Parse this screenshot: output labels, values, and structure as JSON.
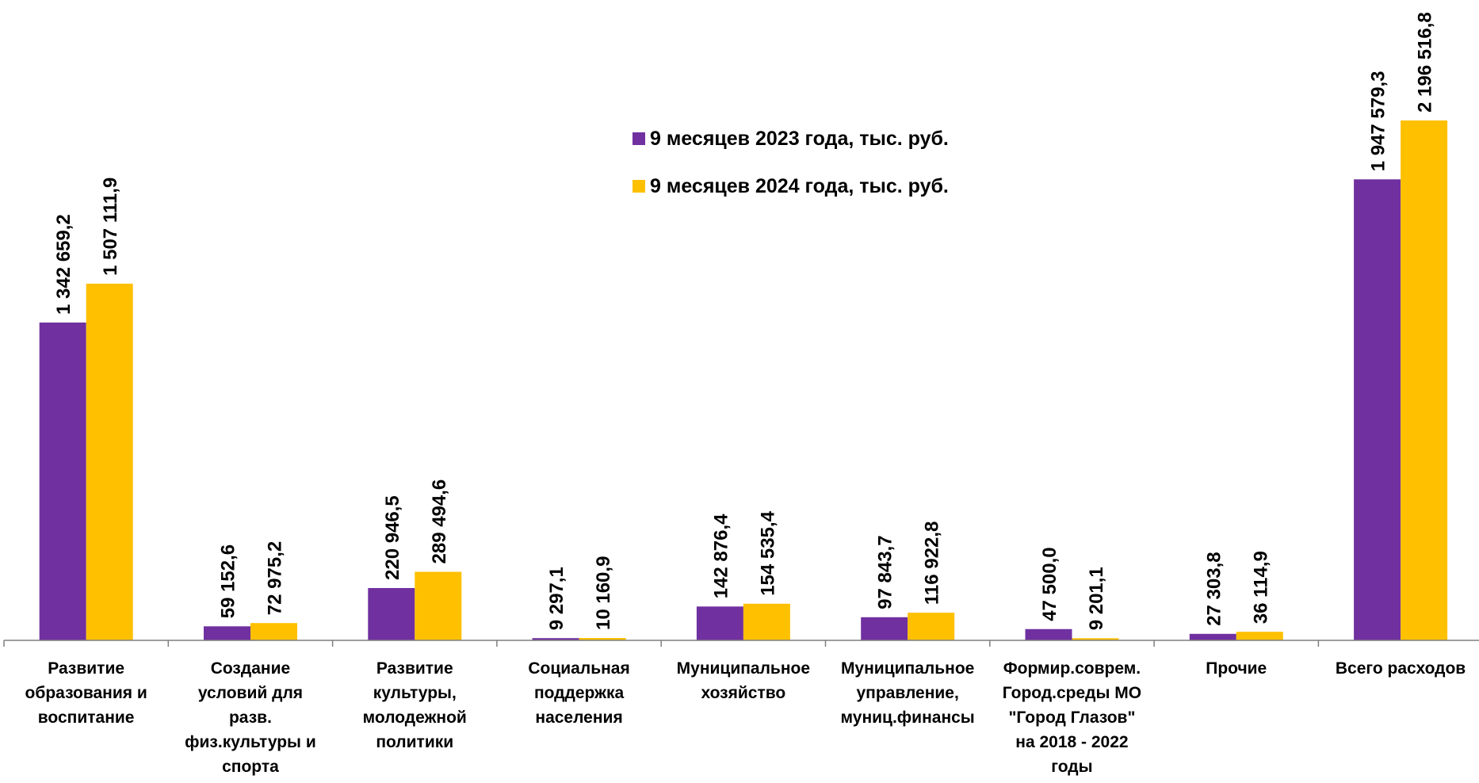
{
  "chart_data": {
    "type": "bar",
    "title": "",
    "xlabel": "",
    "ylabel": "",
    "ylim": [
      0,
      2300000
    ],
    "grid": false,
    "legend_position": "top-center",
    "categories": [
      "Развитие\nобразования и\nвоспитание",
      "Создание\nусловий для\nразв.\nфиз.культуры и\nспорта",
      "Развитие\nкультуры,\nмолодежной\nполитики",
      "Социальная\nподдержка\nнаселения",
      "Муниципальное\nхозяйство",
      "Муниципальное\nуправление,\nмуниц.финансы",
      "Формир.соврем.\nГород.среды МО\n\"Город Глазов\"\nна 2018 - 2022\nгоды",
      "Прочие",
      "Всего расходов"
    ],
    "series": [
      {
        "name": "9 месяцев 2023 года, тыс. руб.",
        "color": "#7030A0",
        "values": [
          1342659.2,
          59152.6,
          220946.5,
          9297.1,
          142876.4,
          97843.7,
          47500.0,
          27303.8,
          1947579.3
        ],
        "labels": [
          "1 342 659,2",
          "59 152,6",
          "220 946,5",
          "9 297,1",
          "142 876,4",
          "97 843,7",
          "47 500,0",
          "27 303,8",
          "1 947 579,3"
        ]
      },
      {
        "name": "9 месяцев 2024 года, тыс. руб.",
        "color": "#FFC000",
        "values": [
          1507111.9,
          72975.2,
          289494.6,
          10160.9,
          154535.4,
          116922.8,
          9201.1,
          36114.9,
          2196516.8
        ],
        "labels": [
          "1 507 111,9",
          "72 975,2",
          "289 494,6",
          "10 160,9",
          "154 535,4",
          "116 922,8",
          "9 201,1",
          "36 114,9",
          "2 196 516,8"
        ]
      }
    ]
  }
}
